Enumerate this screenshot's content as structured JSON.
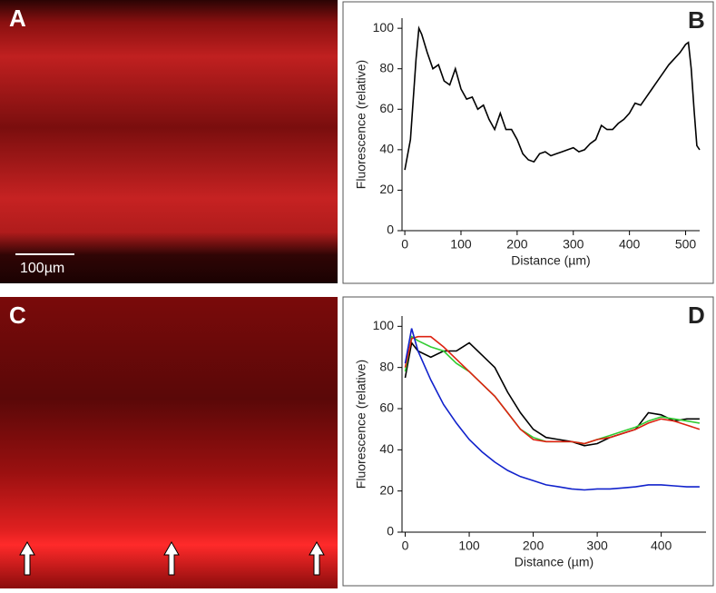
{
  "panels": [
    {
      "label": "A",
      "scale_bar": "100µm"
    },
    {
      "label": "C"
    }
  ],
  "chart_data": [
    {
      "type": "line",
      "panel_label": "B",
      "xlabel": "Distance (µm)",
      "ylabel": "Fluorescence (relative)",
      "x": [
        0,
        10,
        20,
        25,
        30,
        40,
        50,
        60,
        70,
        80,
        90,
        100,
        110,
        120,
        130,
        140,
        150,
        160,
        170,
        180,
        190,
        200,
        210,
        220,
        230,
        240,
        250,
        260,
        270,
        280,
        290,
        300,
        310,
        320,
        330,
        340,
        350,
        360,
        370,
        380,
        390,
        400,
        410,
        420,
        430,
        440,
        450,
        460,
        470,
        480,
        490,
        500,
        505,
        510,
        515,
        520,
        525
      ],
      "series": [
        {
          "color": "#000000",
          "values": [
            30,
            45,
            85,
            100,
            97,
            88,
            80,
            82,
            74,
            72,
            80,
            70,
            65,
            66,
            60,
            62,
            55,
            50,
            58,
            50,
            50,
            45,
            38,
            35,
            34,
            38,
            39,
            37,
            38,
            39,
            40,
            41,
            39,
            40,
            43,
            45,
            52,
            50,
            50,
            53,
            55,
            58,
            63,
            62,
            66,
            70,
            74,
            78,
            82,
            85,
            88,
            92,
            93,
            80,
            60,
            42,
            40
          ]
        }
      ],
      "xlim": [
        -5,
        525
      ],
      "ylim": [
        0,
        105
      ],
      "xticks": [
        0,
        100,
        200,
        300,
        400,
        500
      ],
      "yticks": [
        0,
        20,
        40,
        60,
        80,
        100
      ]
    },
    {
      "type": "line",
      "panel_label": "D",
      "xlabel": "Distance (µm)",
      "ylabel": "Fluorescence (relative)",
      "x": [
        0,
        10,
        20,
        40,
        60,
        80,
        100,
        120,
        140,
        160,
        180,
        200,
        220,
        240,
        260,
        280,
        300,
        320,
        340,
        360,
        380,
        400,
        420,
        440,
        460
      ],
      "series": [
        {
          "color": "#000000",
          "values": [
            75,
            92,
            88,
            85,
            88,
            88,
            92,
            86,
            80,
            68,
            58,
            50,
            46,
            45,
            44,
            42,
            43,
            46,
            48,
            50,
            58,
            57,
            54,
            55,
            55
          ]
        },
        {
          "color": "#33cc33",
          "values": [
            78,
            95,
            93,
            90,
            88,
            82,
            78,
            72,
            66,
            58,
            50,
            46,
            44,
            44,
            44,
            43,
            45,
            47,
            49,
            51,
            54,
            56,
            55,
            54,
            53
          ]
        },
        {
          "color": "#dd2211",
          "values": [
            80,
            94,
            95,
            95,
            90,
            84,
            78,
            72,
            66,
            58,
            50,
            45,
            44,
            44,
            44,
            43,
            45,
            46,
            48,
            50,
            53,
            55,
            54,
            52,
            50
          ]
        },
        {
          "color": "#1122cc",
          "values": [
            82,
            99,
            88,
            74,
            62,
            53,
            45,
            39,
            34,
            30,
            27,
            25,
            23,
            22,
            21,
            20.5,
            21,
            21,
            21.5,
            22,
            23,
            23,
            22.5,
            22,
            22
          ]
        }
      ],
      "xlim": [
        -5,
        470
      ],
      "ylim": [
        0,
        105
      ],
      "xticks": [
        0,
        100,
        200,
        300,
        400
      ],
      "yticks": [
        0,
        20,
        40,
        60,
        80,
        100
      ]
    }
  ]
}
